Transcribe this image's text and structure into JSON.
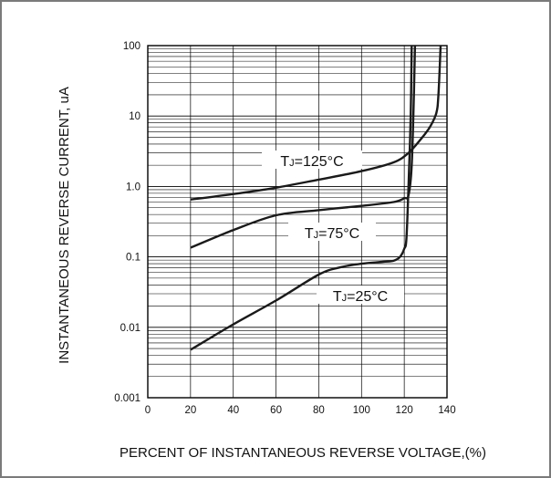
{
  "chart_data": {
    "type": "line",
    "xlabel": "PERCENT OF INSTANTANEOUS REVERSE VOLTAGE,(%)",
    "ylabel": "INSTANTANEOUS REVERSE CURRENT, uA",
    "xlim": [
      0,
      140
    ],
    "ylim": [
      0.001,
      100
    ],
    "yscale": "log",
    "x_ticks": [
      "0",
      "20",
      "40",
      "60",
      "80",
      "100",
      "120",
      "140"
    ],
    "y_ticks": [
      "0.001",
      "0.01",
      "0.1",
      "1.0",
      "10",
      "100"
    ],
    "grid": true,
    "series": [
      {
        "name": "TJ=125°C",
        "x": [
          20,
          40,
          60,
          80,
          100,
          115,
          122,
          128,
          132,
          135,
          136,
          137
        ],
        "y": [
          0.65,
          0.78,
          0.96,
          1.25,
          1.65,
          2.2,
          3.0,
          4.8,
          7.0,
          11,
          20,
          100
        ]
      },
      {
        "name": "TJ=75°C",
        "x": [
          20,
          40,
          60,
          80,
          100,
          115,
          120,
          122,
          123.5,
          124.5,
          125
        ],
        "y": [
          0.135,
          0.24,
          0.39,
          0.46,
          0.53,
          0.6,
          0.68,
          0.75,
          2.0,
          20,
          100
        ]
      },
      {
        "name": "TJ=25°C",
        "x": [
          20,
          40,
          60,
          80,
          90,
          100,
          110,
          115,
          118,
          120,
          121,
          122,
          123,
          123.5
        ],
        "y": [
          0.0048,
          0.011,
          0.024,
          0.056,
          0.071,
          0.08,
          0.085,
          0.088,
          0.1,
          0.13,
          0.18,
          1.0,
          10,
          100
        ]
      }
    ],
    "series_labels": {
      "125": {
        "prefix": "T",
        "sub": "J",
        "suffix": "=125°C"
      },
      "75": {
        "prefix": "T",
        "sub": "J",
        "suffix": "=75°C"
      },
      "25": {
        "prefix": "T",
        "sub": "J",
        "suffix": "=25°C"
      }
    }
  }
}
